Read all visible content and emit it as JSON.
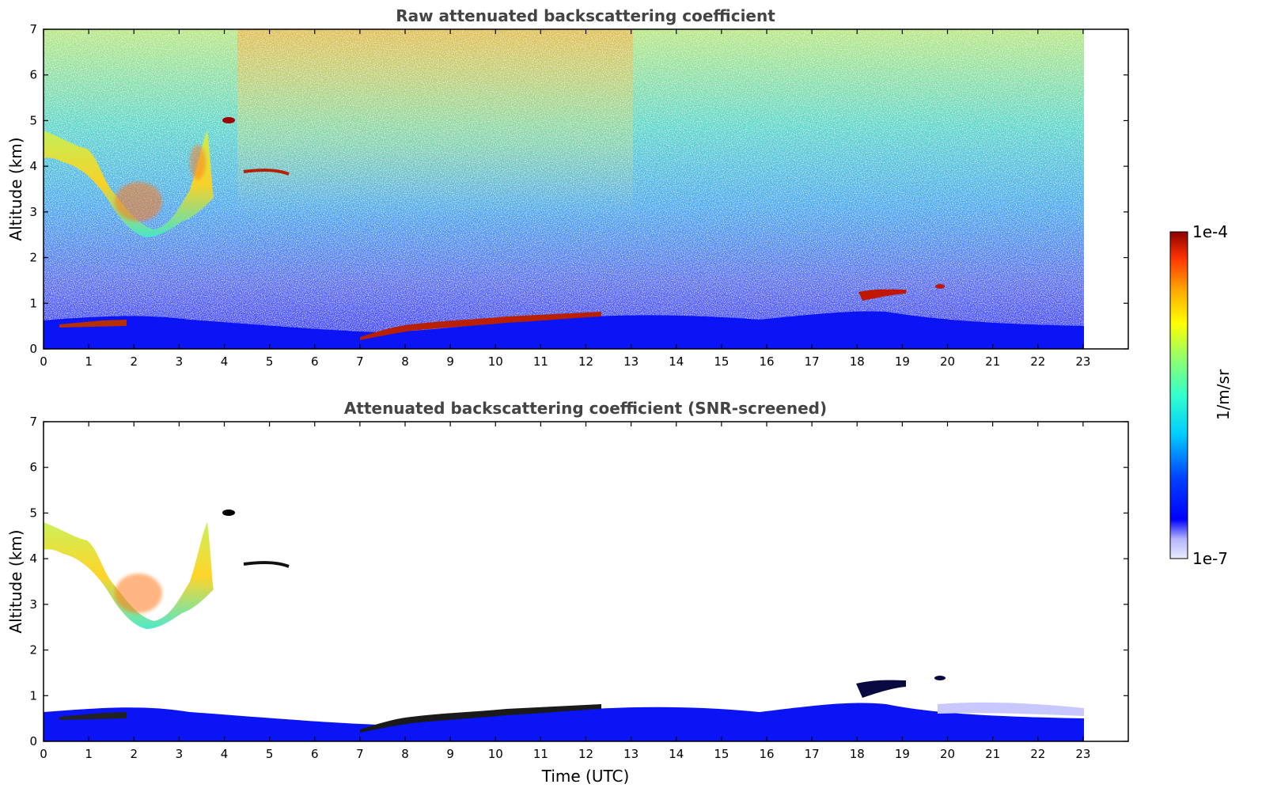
{
  "chart_data": [
    {
      "type": "heatmap",
      "title": "Raw attenuated backscattering coefficient",
      "xlabel": "",
      "ylabel": "Altitude (km)",
      "xlim": [
        0,
        24
      ],
      "ylim": [
        0,
        7
      ],
      "xticks": [
        "0",
        "1",
        "2",
        "3",
        "4",
        "5",
        "6",
        "7",
        "8",
        "9",
        "10",
        "11",
        "12",
        "13",
        "14",
        "15",
        "16",
        "17",
        "18",
        "19",
        "20",
        "21",
        "22",
        "23"
      ],
      "yticks": [
        "0",
        "1",
        "2",
        "3",
        "4",
        "5",
        "6",
        "7"
      ],
      "data_extent_x": [
        0,
        23
      ],
      "features": [
        {
          "name": "boundary layer",
          "x": [
            0,
            23
          ],
          "y": [
            0,
            0.6
          ]
        },
        {
          "name": "elevated aerosol/cloud",
          "x": [
            0,
            3.8
          ],
          "y": [
            2.6,
            5.0
          ]
        },
        {
          "name": "small cloud",
          "x": [
            4.0,
            4.2
          ],
          "y": [
            4.95,
            5.05
          ]
        },
        {
          "name": "thin layer",
          "x": [
            4.4,
            5.4
          ],
          "y": [
            3.8,
            3.9
          ]
        },
        {
          "name": "cloud tops",
          "x": [
            7.0,
            12.3
          ],
          "y": [
            0.3,
            0.85
          ]
        },
        {
          "name": "cloud",
          "x": [
            18.0,
            19.9
          ],
          "y": [
            0.9,
            1.4
          ]
        }
      ]
    },
    {
      "type": "heatmap",
      "title": "Attenuated backscattering coefficient (SNR-screened)",
      "xlabel": "Time (UTC)",
      "ylabel": "Altitude (km)",
      "xlim": [
        0,
        24
      ],
      "ylim": [
        0,
        7
      ],
      "xticks": [
        "0",
        "1",
        "2",
        "3",
        "4",
        "5",
        "6",
        "7",
        "8",
        "9",
        "10",
        "11",
        "12",
        "13",
        "14",
        "15",
        "16",
        "17",
        "18",
        "19",
        "20",
        "21",
        "22",
        "23"
      ],
      "yticks": [
        "0",
        "1",
        "2",
        "3",
        "4",
        "5",
        "6",
        "7"
      ],
      "data_extent_x": [
        0,
        23
      ]
    }
  ],
  "colorbar": {
    "label": "1/m/sr",
    "max_label": "1e-4",
    "min_label": "1e-7",
    "colors": [
      "#ebebff",
      "#b4b4ff",
      "#0000ff",
      "#0066ff",
      "#00ccff",
      "#33ffcc",
      "#99ff66",
      "#ffff00",
      "#ffaa00",
      "#ff3300",
      "#8b0000"
    ]
  }
}
